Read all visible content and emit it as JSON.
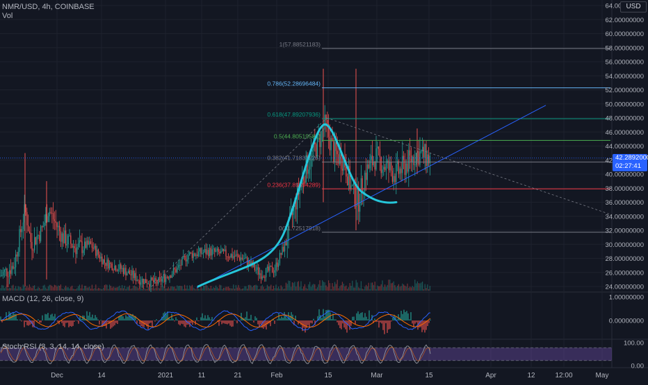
{
  "header": {
    "symbol_line": "NMR/USD, 4h, COINBASE",
    "volume_label": "Vol",
    "currency": "USD"
  },
  "current_price": {
    "value": "42.28920000",
    "countdown": "02:27:41",
    "number": 42.2892
  },
  "price_axis": {
    "ticks": [
      "64.00000000",
      "62.00000000",
      "60.00000000",
      "58.00000000",
      "56.00000000",
      "54.00000000",
      "52.00000000",
      "50.00000000",
      "48.00000000",
      "46.00000000",
      "44.00000000",
      "42.00000000",
      "40.00000000",
      "38.00000000",
      "36.00000000",
      "34.00000000",
      "32.00000000",
      "30.00000000",
      "28.00000000",
      "26.00000000",
      "24.00000000"
    ],
    "min": 24,
    "max": 64
  },
  "time_axis": {
    "labels": [
      "Dec",
      "14",
      "2021",
      "11",
      "21",
      "Feb",
      "15",
      "Mar",
      "15",
      "Apr",
      "12",
      "12:00",
      "May"
    ]
  },
  "fibonacci": {
    "levels": [
      {
        "label": "1(57.88521183)",
        "price": 57.88521183,
        "color": "#787b86"
      },
      {
        "label": "0.786(52.28696484)",
        "price": 52.28696484,
        "color": "#64b5f6"
      },
      {
        "label": "0.618(47.89207936)",
        "price": 47.89207936,
        "color": "#089981"
      },
      {
        "label": "0.5(44.80519581)",
        "price": 44.80519581,
        "color": "#4caf50"
      },
      {
        "label": "0.382(41.71831225)",
        "price": 41.71831225,
        "color": "#787b86"
      },
      {
        "label": "0.236(37.89894289)",
        "price": 37.89894289,
        "color": "#f23645"
      },
      {
        "label": "0(31.72517918)",
        "price": 31.72517918,
        "color": "#787b86"
      }
    ]
  },
  "macd": {
    "legend": "MACD (12, 26, close, 9)",
    "ticks": [
      "1.00000000",
      "0.00000000"
    ]
  },
  "stoch_rsi": {
    "legend": "Stoch RSI (3, 3, 14, 14, close)",
    "ticks": [
      "100.00",
      "0.00"
    ],
    "upper_band": 80,
    "lower_band": 20
  },
  "colors": {
    "background": "#131722",
    "grid": "#1e222d",
    "up": "#26a69a",
    "down": "#ef5350",
    "trendline": "#2962ff",
    "curve": "#26c6da",
    "macd_line": "#2962ff",
    "signal_line": "#ff6d00",
    "stoch_band": "#7e57c2"
  }
}
